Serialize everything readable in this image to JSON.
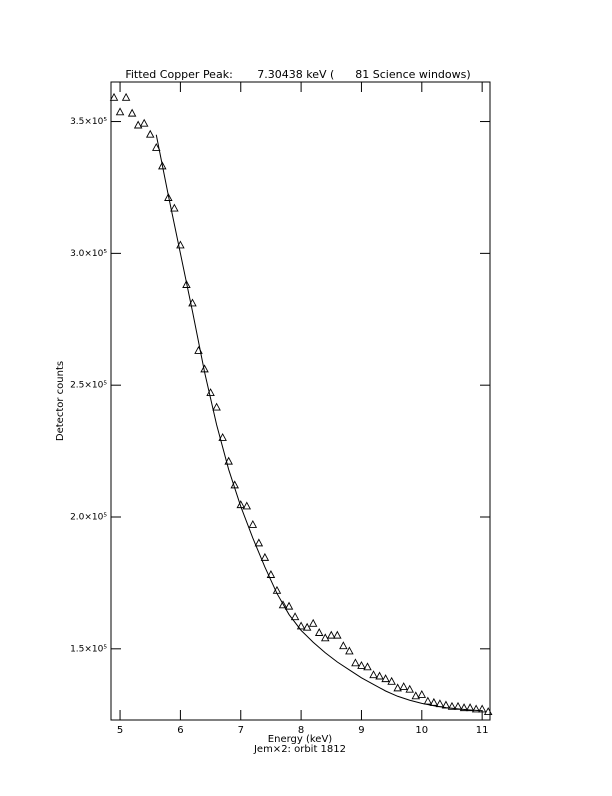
{
  "chart_data": {
    "type": "scatter",
    "title": "Fitted Copper Peak:       7.30438 keV (      81 Science windows)",
    "x_label": "Energy (keV)",
    "subtitle": "Jem×2: orbit 1812",
    "y_label": "Detector counts",
    "xlim": [
      4.85,
      11.13
    ],
    "ylim": [
      123000,
      365000
    ],
    "xticks": [
      5,
      6,
      7,
      8,
      9,
      10,
      11
    ],
    "yticks": [
      {
        "value": 150000,
        "label": "1.5×10⁵"
      },
      {
        "value": 200000,
        "label": "2.0×10⁵"
      },
      {
        "value": 250000,
        "label": "2.5×10⁵"
      },
      {
        "value": 300000,
        "label": "3.0×10⁵"
      },
      {
        "value": 350000,
        "label": "3.5×10⁵"
      }
    ],
    "series": [
      {
        "type": "scatter",
        "color": "#000000",
        "x": [
          4.9,
          5.0,
          5.1,
          5.2,
          5.3,
          5.4,
          5.5,
          5.6,
          5.7,
          5.8,
          5.9,
          6.0,
          6.1,
          6.2,
          6.3,
          6.4,
          6.5,
          6.6,
          6.7,
          6.8,
          6.9,
          7.0,
          7.1,
          7.2,
          7.3,
          7.4,
          7.5,
          7.6,
          7.7,
          7.8,
          7.9,
          8.0,
          8.1,
          8.2,
          8.3,
          8.4,
          8.5,
          8.6,
          8.7,
          8.8,
          8.9,
          9.0,
          9.1,
          9.2,
          9.3,
          9.4,
          9.5,
          9.6,
          9.7,
          9.8,
          9.9,
          10.0,
          10.1,
          10.2,
          10.3,
          10.4,
          10.5,
          10.6,
          10.7,
          10.8,
          10.9,
          11.0,
          11.1
        ],
        "values": [
          359000,
          353500,
          359000,
          353000,
          348500,
          349200,
          345000,
          340000,
          333000,
          321000,
          317000,
          303000,
          288000,
          281000,
          263000,
          256000,
          247000,
          241500,
          230000,
          221000,
          212000,
          204500,
          204000,
          197000,
          190000,
          184500,
          178000,
          172000,
          166500,
          166000,
          162000,
          158500,
          158000,
          159500,
          156000,
          154000,
          155000,
          155000,
          151000,
          149000,
          144500,
          143500,
          143000,
          140000,
          139500,
          138500,
          137500,
          135000,
          135500,
          134500,
          132000,
          132500,
          130000,
          129500,
          129000,
          128500,
          128000,
          128000,
          127500,
          127500,
          127000,
          127000,
          126000
        ]
      },
      {
        "type": "line",
        "color": "#000000",
        "x": [
          5.6,
          5.8,
          6.0,
          6.2,
          6.4,
          6.6,
          6.8,
          7.0,
          7.2,
          7.4,
          7.6,
          7.8,
          8.0,
          8.2,
          8.4,
          8.6,
          8.8,
          9.0,
          9.2,
          9.4,
          9.6,
          9.8,
          10.0,
          10.2,
          10.4,
          10.6,
          10.8,
          11.0
        ],
        "values": [
          345000,
          322000,
          300000,
          278000,
          255000,
          235000,
          218000,
          204000,
          192000,
          181000,
          171000,
          163000,
          157000,
          152500,
          148500,
          145000,
          142000,
          139000,
          136500,
          134000,
          132000,
          130500,
          129300,
          128400,
          127700,
          127200,
          126800,
          126500
        ]
      }
    ]
  }
}
